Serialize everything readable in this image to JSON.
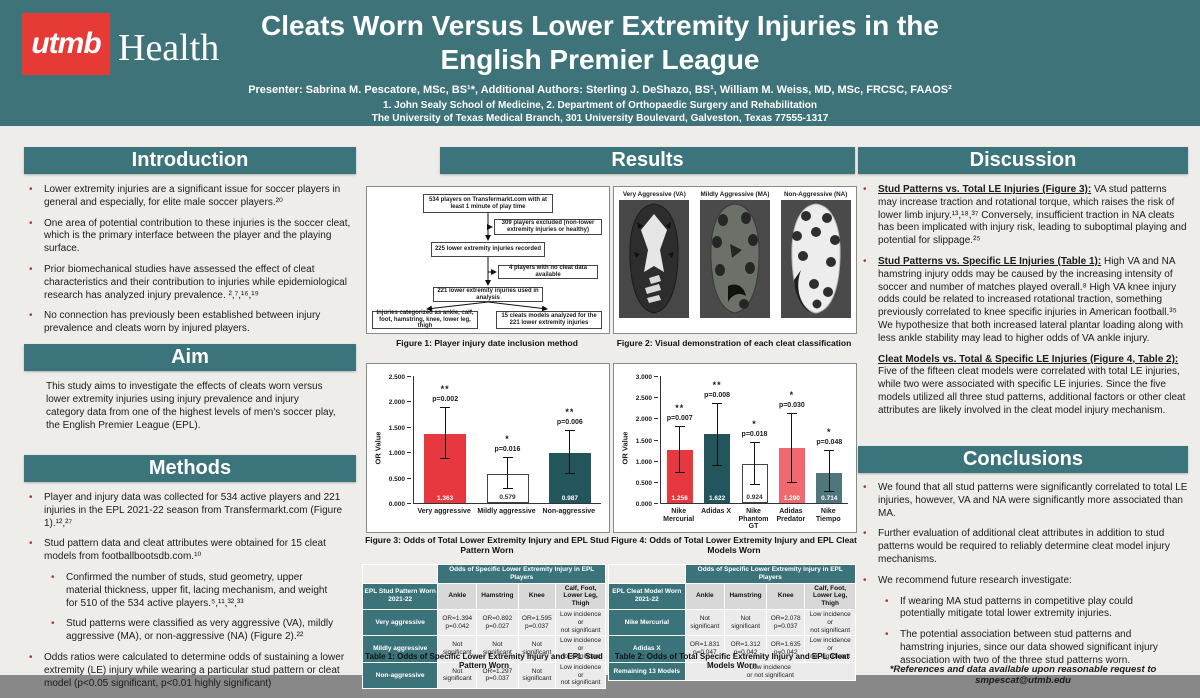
{
  "header": {
    "logo_text": "utmb",
    "logo_word": "Health",
    "title_line1": "Cleats Worn Versus Lower Extremity Injuries in the",
    "title_line2": "English Premier League",
    "presenters": "Presenter: Sabrina M. Pescatore, MSc, BS¹*, Additional Authors: Sterling J. DeShazo, BS¹, William M. Weiss, MD, MSc, FRCSC, FAAOS²",
    "affiliation1": "1. John Sealy School of Medicine, 2. Department of Orthopaedic Surgery and Rehabilitation",
    "affiliation2": "The University of Texas Medical Branch, 301 University Boulevard, Galveston, Texas 77555-1317"
  },
  "introduction": {
    "title": "Introduction",
    "bullets": [
      "Lower extremity injuries are a significant issue for soccer players in general and especially, for elite male soccer players.²⁰",
      "One area of potential contribution to these injuries is the soccer cleat, which is the primary interface between the player and the playing surface.",
      "Prior biomechanical studies have assessed the effect of cleat characteristics and their contribution to injuries while epidemiological research has analyzed injury prevalence. ²,⁷,¹⁶,¹⁹",
      "No connection has previously been established between injury prevalence and cleats worn by injured players."
    ]
  },
  "aim": {
    "title": "Aim",
    "text": "This study aims to investigate the effects of cleats worn versus lower extremity injuries using injury prevalence and injury category data from one of the highest levels of men's soccer play, the English Premier League (EPL)."
  },
  "methods": {
    "title": "Methods",
    "bullets": [
      {
        "text": "Player and injury data was collected for 534 active players and 221 injuries in the EPL 2021-22 season from Transfermarkt.com (Figure 1).¹²,²⁷"
      },
      {
        "text": "Stud pattern data and cleat attributes were obtained for 15 cleat models from footballbootsdb.com.¹⁰"
      },
      {
        "text": "Confirmed the number of studs, stud geometry, upper material thickness, upper fit, lacing mechanism, and weight for 510 of the 534 active players.⁵,¹¹,³²,³³"
      },
      {
        "text": "Stud patterns were classified as very aggressive (VA), mildly aggressive (MA), or non-aggressive (NA) (Figure 2).²²"
      },
      {
        "text": "Odds ratios were calculated to determine odds of sustaining a lower extremity (LE) injury while wearing a particular stud pattern or cleat model (p<0.05 significant, p<0.01 highly significant)"
      }
    ]
  },
  "results": {
    "title": "Results",
    "flowchart": {
      "boxes": {
        "b1": "534 players on Transfermarkt.com with at least 1 minute of play time",
        "excl1": "309 players excluded (non-lower extremity injuries or healthy)",
        "b2": "225 lower extremity injuries recorded",
        "excl2": "4 players with no cleat data available",
        "b3": "221 lower extremity injuries used in analysis",
        "cat": "Injuries categorized as ankle, calf, foot, hamstring, knee, lower leg, thigh",
        "models": "15 cleats models analyzed for the 221 lower extremity injuries"
      }
    },
    "figure1_caption": "Figure 1: Player injury date inclusion method",
    "figure2": {
      "labels": [
        "Very Aggressive (VA)",
        "Mildly Aggressive (MA)",
        "Non-Aggressive (NA)"
      ],
      "caption": "Figure 2: Visual demonstration of each cleat classification"
    }
  },
  "chart_data": [
    {
      "type": "bar",
      "caption": "Figure 3: Odds of Total Lower Extremity Injury and EPL Stud Pattern Worn",
      "ylabel": "OR Value",
      "ylim": [
        0,
        2.5
      ],
      "yticks": [
        "0.000",
        "0.500",
        "1.000",
        "1.500",
        "2.000",
        "2.500"
      ],
      "categories": [
        "Very aggressive",
        "Mildly aggressive",
        "Non-aggressive"
      ],
      "values": [
        1.363,
        0.579,
        0.987
      ],
      "bar_labels": [
        "1.363",
        "0.579",
        "0.987"
      ],
      "bar_colors": [
        "#E8383F",
        "#FFFFFF",
        "#23565C"
      ],
      "label_colors": [
        "#FFFFFF",
        "#333333",
        "#FFFFFF"
      ],
      "ci_low": [
        0.86,
        0.28,
        0.57
      ],
      "ci_high": [
        1.88,
        0.89,
        1.41
      ],
      "sig": [
        "**",
        "*",
        "**"
      ],
      "p_values": [
        "p=0.002",
        "p=0.016",
        "p=0.006"
      ],
      "grid": false,
      "legend": "none"
    },
    {
      "type": "bar",
      "caption": "Figure 4: Odds of Total Lower Extremity Injury and EPL Cleat Models Worn",
      "ylabel": "OR Value",
      "ylim": [
        0,
        3.0
      ],
      "yticks": [
        "0.000",
        "0.500",
        "1.000",
        "1.500",
        "2.000",
        "2.500",
        "3.000"
      ],
      "categories": [
        "Nike Mercurial",
        "Adidas X",
        "Nike Phantom GT",
        "Adidas Predator",
        "Nike Tiempo"
      ],
      "values": [
        1.256,
        1.622,
        0.924,
        1.29,
        0.714
      ],
      "bar_labels": [
        "1.256",
        "1.622",
        "0.924",
        "1.290",
        "0.714"
      ],
      "bar_colors": [
        "#E8383F",
        "#23565C",
        "#FFFFFF",
        "#F0696E",
        "#4F767C"
      ],
      "label_colors": [
        "#FFFFFF",
        "#FFFFFF",
        "#333333",
        "#FFFFFF",
        "#FFFFFF"
      ],
      "ci_low": [
        0.7,
        0.88,
        0.42,
        0.48,
        0.25
      ],
      "ci_high": [
        1.8,
        2.35,
        1.42,
        2.1,
        1.24
      ],
      "sig": [
        "**",
        "**",
        "*",
        "*",
        "*"
      ],
      "p_values": [
        "p=0.007",
        "p=0.008",
        "p=0.018",
        "p=0.030",
        "p=0.048"
      ],
      "grid": false,
      "legend": "none"
    },
    {
      "type": "table",
      "caption": "Table 1: Odds of Specific Lower Extremity Injury and EPL Stud Pattern Worn",
      "span_header": "Odds of Specific Lower Extremity Injury in EPL Players",
      "row_header": "EPL Stud Pattern Worn 2021-22",
      "columns": [
        "Ankle",
        "Hamstring",
        "Knee",
        "Calf, Foot, Lower Leg, Thigh"
      ],
      "rows": [
        {
          "label": "Very aggressive",
          "cells": [
            "OR=1.394\np=0.042",
            "OR=0.892\np=0.027",
            "OR=1.595\np=0.037",
            "Low incidence or\nnot significant"
          ]
        },
        {
          "label": "Mildly aggressive",
          "cells": [
            "Not\nsignificant",
            "Not\nsignificant",
            "Not\nsignificant",
            "Low incidence or\nnot significant"
          ]
        },
        {
          "label": "Non-aggressive",
          "cells": [
            "Not\nsignificant",
            "OR=1.297\np=0.037",
            "Not\nsignificant",
            "Low incidence or\nnot significant"
          ]
        }
      ]
    },
    {
      "type": "table",
      "caption": "Table 2: Odds of Total Specific Extremity Injury and EPL Cleat Models Worn",
      "span_header": "Odds of Specific Lower Extremity Injury in EPL Players",
      "row_header": "EPL Cleat Model Worn 2021-22",
      "columns": [
        "Ankle",
        "Hamstring",
        "Knee",
        "Calf, Foot, Lower Leg, Thigh"
      ],
      "rows": [
        {
          "label": "Nike Mercurial",
          "cells": [
            "Not\nsignificant",
            "Not\nsignificant",
            "OR=2.078\np=0.037",
            "Low incidence or\nnot significant"
          ]
        },
        {
          "label": "Adidas X",
          "cells": [
            "OR=1.831\np=0.047",
            "OR=1.312\np=0.042",
            "OR=1.635\np=0.042",
            "Low incidence or\nnot significant"
          ]
        },
        {
          "label": "Remaining 13 Models",
          "span_cells": "Low incidence\nor not significant"
        }
      ]
    }
  ],
  "discussion": {
    "title": "Discussion",
    "items": [
      {
        "lead": "Stud Patterns vs. Total LE Injuries (Figure 3):",
        "text": "VA stud patterns may increase traction and rotational torque, which raises the risk of lower limb injury.¹³,¹⁸,³⁷ Conversely, insufficient traction in NA cleats has been implicated with injury risk, leading to suboptimal playing and potential for slippage.²⁵"
      },
      {
        "lead": "Stud Patterns vs. Specific LE Injuries (Table 1):",
        "text": "High VA and NA hamstring injury odds may be caused by the increasing intensity of soccer and number of matches played overall.⁸ High VA knee injury odds could be related to increased rotational traction, something previously correlated to knee specific injuries in American football.³⁵ We hypothesize that both increased lateral plantar loading along with less ankle stability may lead to higher odds of VA ankle injury."
      },
      {
        "lead": "Cleat Models vs. Total & Specific LE Injuries (Figure 4, Table 2):",
        "text": "Five of the fifteen cleat models were correlated with total LE injuries, while two were associated with specific LE injuries. Since the five models utilized all three stud patterns, additional factors or other cleat attributes are likely involved in the cleat model injury mechanism."
      }
    ]
  },
  "conclusions": {
    "title": "Conclusions",
    "bullets": [
      {
        "text": "We found that all stud patterns were significantly correlated to total LE injuries, however, VA and NA were significantly more associated than MA."
      },
      {
        "text": "Further evaluation of additional cleat attributes in addition to stud patterns would be required to reliably determine cleat model injury mechanisms."
      },
      {
        "text": "We recommend future research investigate:"
      },
      {
        "text": "If wearing MA stud patterns in competitive play could potentially mitigate total lower extremity injuries."
      },
      {
        "text": "The potential association between stud patterns and hamstring injuries, since our data showed significant injury association with two of the three stud patterns worn."
      }
    ]
  },
  "footer": "*References and data available upon reasonable request to smpescat@utmb.edu",
  "colors": {
    "header_teal": "#3E737A",
    "section_teal": "#3C747C",
    "logo_red": "#E53A35",
    "bar_red": "#E8383F",
    "bar_dark_teal": "#23565C",
    "bar_pink": "#F0696E",
    "bar_gray_teal": "#4F767C",
    "table_header_teal": "#3B737B"
  }
}
